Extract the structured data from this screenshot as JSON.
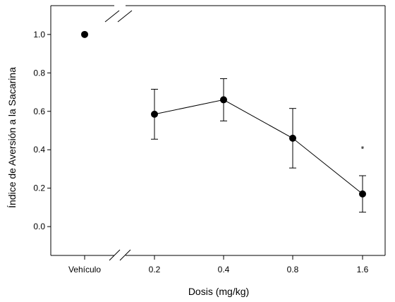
{
  "chart_data": {
    "type": "scatter",
    "xlabel": "Dosis (mg/kg)",
    "ylabel": "Índice de Aversión a la Sacarina",
    "categories": [
      "Vehículo",
      "0.2",
      "0.4",
      "0.8",
      "1.6"
    ],
    "ylim": [
      -0.15,
      1.15
    ],
    "yticks": [
      "0.0",
      "0.2",
      "0.4",
      "0.6",
      "0.8",
      "1.0"
    ],
    "grid": false,
    "axis_break": "x between Vehículo and 0.2",
    "series": [
      {
        "values": [
          1.0,
          0.585,
          0.66,
          0.46,
          0.17
        ],
        "errors": [
          null,
          0.13,
          0.11,
          0.155,
          0.095
        ],
        "connected_from_index": 1
      }
    ],
    "annotations": [
      {
        "category": "1.6",
        "text": "*",
        "y": 0.41
      }
    ]
  }
}
